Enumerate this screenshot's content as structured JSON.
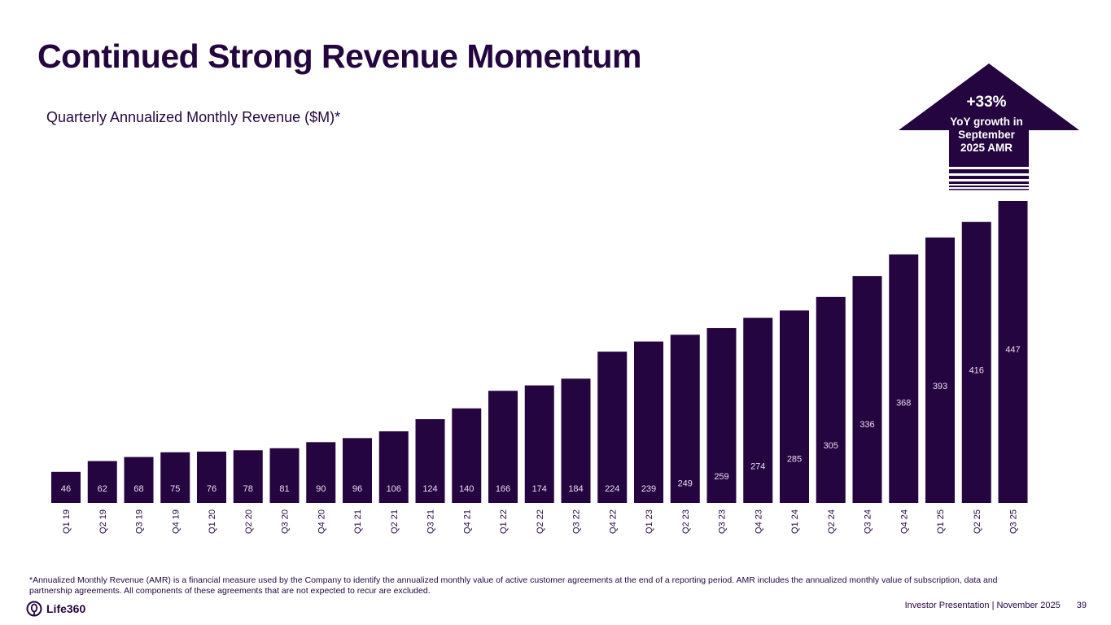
{
  "slide": {
    "title": "Continued Strong Revenue Momentum",
    "subtitle": "Quarterly Annualized Monthly Revenue ($M)*",
    "footnote": "*Annualized Monthly Revenue (AMR) is a financial measure used by the Company to identify the annualized monthly value of active customer agreements at the end of a reporting period. AMR includes the annualized monthly value of subscription, data and partnership agreements. All components of these agreements that are not expected to recur are excluded.",
    "logo_text": "Life360",
    "footer_label": "Investor Presentation  | November 2025",
    "page_number": "39",
    "colors": {
      "bar": "#25053f",
      "label": "#e8dcf5",
      "text": "#24063f"
    }
  },
  "callout": {
    "headline": "+33%",
    "line1": "YoY growth in",
    "line2": "September",
    "line3": "2025 AMR",
    "icon": "up-arrow-icon"
  },
  "chart_data": {
    "type": "bar",
    "title": "Quarterly Annualized Monthly Revenue ($M)*",
    "xlabel": "",
    "ylabel": "",
    "ylim": [
      0,
      447
    ],
    "grid": false,
    "legend": "none",
    "categories": [
      "Q1 19",
      "Q2 19",
      "Q3 19",
      "Q4 19",
      "Q1 20",
      "Q2 20",
      "Q3 20",
      "Q4 20",
      "Q1 21",
      "Q2 21",
      "Q3 21",
      "Q4 21",
      "Q1 22",
      "Q2 22",
      "Q3 22",
      "Q4 22",
      "Q1 23",
      "Q2 23",
      "Q3 23",
      "Q4 23",
      "Q1 24",
      "Q2 24",
      "Q3 24",
      "Q4 24",
      "Q1 25",
      "Q2 25",
      "Q3 25"
    ],
    "values": [
      46,
      62,
      68,
      75,
      76,
      78,
      81,
      90,
      96,
      106,
      124,
      140,
      166,
      174,
      184,
      224,
      239,
      249,
      259,
      274,
      285,
      305,
      336,
      368,
      393,
      416,
      447
    ]
  }
}
